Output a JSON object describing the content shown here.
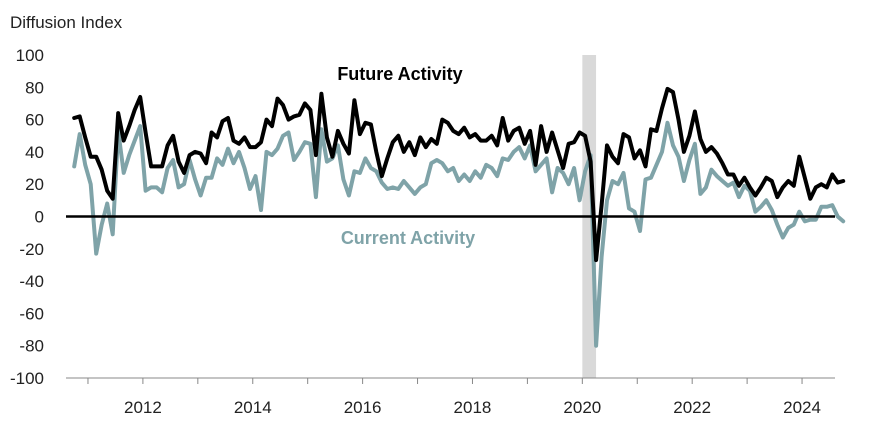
{
  "chart_data": {
    "type": "line",
    "ylabel": "Diffusion Index",
    "ylim": [
      -100,
      100
    ],
    "yticks": [
      "100",
      "80",
      "60",
      "40",
      "20",
      "0",
      "-20",
      "-40",
      "-60",
      "-80",
      "-100"
    ],
    "xlim": [
      2010.6,
      2024.6
    ],
    "xticks": [
      {
        "label": "2012",
        "x": 2012.0
      },
      {
        "label": "2014",
        "x": 2014.0
      },
      {
        "label": "2016",
        "x": 2016.0
      },
      {
        "label": "2018",
        "x": 2018.0
      },
      {
        "label": "2020",
        "x": 2020.0
      },
      {
        "label": "2022",
        "x": 2022.0
      },
      {
        "label": "2024",
        "x": 2024.0
      }
    ],
    "recession": {
      "start": 2020.0,
      "end": 2020.25,
      "color": "#d9d9d9"
    },
    "series": [
      {
        "name": "Future Activity",
        "color": "#000000",
        "points": [
          [
            2010.75,
            61
          ],
          [
            2010.85,
            62
          ],
          [
            2010.95,
            49
          ],
          [
            2011.05,
            37
          ],
          [
            2011.15,
            37
          ],
          [
            2011.25,
            29
          ],
          [
            2011.35,
            16
          ],
          [
            2011.45,
            11
          ],
          [
            2011.55,
            64
          ],
          [
            2011.65,
            47
          ],
          [
            2011.75,
            56
          ],
          [
            2011.85,
            66
          ],
          [
            2011.95,
            74
          ],
          [
            2012.05,
            52
          ],
          [
            2012.15,
            31
          ],
          [
            2012.25,
            31
          ],
          [
            2012.35,
            31
          ],
          [
            2012.45,
            44
          ],
          [
            2012.55,
            50
          ],
          [
            2012.65,
            34
          ],
          [
            2012.75,
            27
          ],
          [
            2012.85,
            38
          ],
          [
            2012.95,
            40
          ],
          [
            2013.05,
            39
          ],
          [
            2013.15,
            33
          ],
          [
            2013.25,
            52
          ],
          [
            2013.35,
            49
          ],
          [
            2013.45,
            59
          ],
          [
            2013.55,
            61
          ],
          [
            2013.65,
            47
          ],
          [
            2013.75,
            45
          ],
          [
            2013.85,
            49
          ],
          [
            2013.95,
            43
          ],
          [
            2014.05,
            43
          ],
          [
            2014.15,
            46
          ],
          [
            2014.25,
            60
          ],
          [
            2014.35,
            56
          ],
          [
            2014.45,
            73
          ],
          [
            2014.55,
            69
          ],
          [
            2014.65,
            60
          ],
          [
            2014.75,
            62
          ],
          [
            2014.85,
            63
          ],
          [
            2014.95,
            70
          ],
          [
            2015.05,
            66
          ],
          [
            2015.15,
            38
          ],
          [
            2015.25,
            76
          ],
          [
            2015.35,
            49
          ],
          [
            2015.45,
            37
          ],
          [
            2015.55,
            53
          ],
          [
            2015.65,
            45
          ],
          [
            2015.75,
            39
          ],
          [
            2015.85,
            72
          ],
          [
            2015.95,
            51
          ],
          [
            2016.05,
            58
          ],
          [
            2016.15,
            57
          ],
          [
            2016.25,
            40
          ],
          [
            2016.35,
            25
          ],
          [
            2016.45,
            36
          ],
          [
            2016.55,
            46
          ],
          [
            2016.65,
            50
          ],
          [
            2016.75,
            40
          ],
          [
            2016.85,
            46
          ],
          [
            2016.95,
            38
          ],
          [
            2017.05,
            49
          ],
          [
            2017.15,
            43
          ],
          [
            2017.25,
            48
          ],
          [
            2017.35,
            45
          ],
          [
            2017.45,
            60
          ],
          [
            2017.55,
            58
          ],
          [
            2017.65,
            53
          ],
          [
            2017.75,
            51
          ],
          [
            2017.85,
            55
          ],
          [
            2017.95,
            49
          ],
          [
            2018.05,
            51
          ],
          [
            2018.15,
            47
          ],
          [
            2018.25,
            47
          ],
          [
            2018.35,
            50
          ],
          [
            2018.45,
            44
          ],
          [
            2018.55,
            61
          ],
          [
            2018.65,
            47
          ],
          [
            2018.75,
            53
          ],
          [
            2018.85,
            55
          ],
          [
            2018.95,
            45
          ],
          [
            2019.05,
            53
          ],
          [
            2019.15,
            32
          ],
          [
            2019.25,
            56
          ],
          [
            2019.35,
            40
          ],
          [
            2019.45,
            52
          ],
          [
            2019.55,
            41
          ],
          [
            2019.65,
            30
          ],
          [
            2019.75,
            45
          ],
          [
            2019.85,
            46
          ],
          [
            2019.95,
            52
          ],
          [
            2020.05,
            50
          ],
          [
            2020.15,
            34
          ],
          [
            2020.25,
            -27
          ],
          [
            2020.35,
            7
          ],
          [
            2020.45,
            44
          ],
          [
            2020.55,
            37
          ],
          [
            2020.65,
            33
          ],
          [
            2020.75,
            51
          ],
          [
            2020.85,
            49
          ],
          [
            2020.95,
            36
          ],
          [
            2021.05,
            41
          ],
          [
            2021.15,
            31
          ],
          [
            2021.25,
            54
          ],
          [
            2021.35,
            53
          ],
          [
            2021.45,
            67
          ],
          [
            2021.55,
            79
          ],
          [
            2021.65,
            77
          ],
          [
            2021.75,
            60
          ],
          [
            2021.85,
            40
          ],
          [
            2021.95,
            50
          ],
          [
            2022.05,
            65
          ],
          [
            2022.15,
            48
          ],
          [
            2022.25,
            40
          ],
          [
            2022.35,
            43
          ],
          [
            2022.45,
            39
          ],
          [
            2022.55,
            33
          ],
          [
            2022.65,
            26
          ],
          [
            2022.75,
            26
          ],
          [
            2022.85,
            19
          ],
          [
            2022.95,
            24
          ],
          [
            2023.05,
            18
          ],
          [
            2023.15,
            13
          ],
          [
            2023.25,
            18
          ],
          [
            2023.35,
            24
          ],
          [
            2023.45,
            22
          ],
          [
            2023.55,
            12
          ],
          [
            2023.65,
            18
          ],
          [
            2023.75,
            22
          ],
          [
            2023.85,
            19
          ],
          [
            2023.95,
            37
          ],
          [
            2024.05,
            24
          ],
          [
            2024.15,
            11
          ],
          [
            2024.25,
            18
          ],
          [
            2024.35,
            20
          ],
          [
            2024.45,
            18
          ],
          [
            2024.55,
            26
          ],
          [
            2024.65,
            21
          ],
          [
            2024.75,
            22
          ]
        ]
      },
      {
        "name": "Current Activity",
        "color": "#7fa3a8",
        "points": [
          [
            2010.75,
            31
          ],
          [
            2010.85,
            51
          ],
          [
            2010.95,
            32
          ],
          [
            2011.05,
            20
          ],
          [
            2011.15,
            -23
          ],
          [
            2011.25,
            -5
          ],
          [
            2011.35,
            8
          ],
          [
            2011.45,
            -11
          ],
          [
            2011.55,
            53
          ],
          [
            2011.65,
            27
          ],
          [
            2011.75,
            38
          ],
          [
            2011.85,
            47
          ],
          [
            2011.95,
            56
          ],
          [
            2012.05,
            16
          ],
          [
            2012.15,
            18
          ],
          [
            2012.25,
            18
          ],
          [
            2012.35,
            15
          ],
          [
            2012.45,
            30
          ],
          [
            2012.55,
            35
          ],
          [
            2012.65,
            18
          ],
          [
            2012.75,
            20
          ],
          [
            2012.85,
            35
          ],
          [
            2012.95,
            23
          ],
          [
            2013.05,
            13
          ],
          [
            2013.15,
            24
          ],
          [
            2013.25,
            24
          ],
          [
            2013.35,
            36
          ],
          [
            2013.45,
            32
          ],
          [
            2013.55,
            42
          ],
          [
            2013.65,
            33
          ],
          [
            2013.75,
            40
          ],
          [
            2013.85,
            30
          ],
          [
            2013.95,
            17
          ],
          [
            2014.05,
            25
          ],
          [
            2014.15,
            4
          ],
          [
            2014.25,
            40
          ],
          [
            2014.35,
            38
          ],
          [
            2014.45,
            42
          ],
          [
            2014.55,
            50
          ],
          [
            2014.65,
            52
          ],
          [
            2014.75,
            35
          ],
          [
            2014.85,
            40
          ],
          [
            2014.95,
            46
          ],
          [
            2015.05,
            45
          ],
          [
            2015.15,
            12
          ],
          [
            2015.25,
            54
          ],
          [
            2015.35,
            34
          ],
          [
            2015.45,
            36
          ],
          [
            2015.55,
            44
          ],
          [
            2015.65,
            23
          ],
          [
            2015.75,
            13
          ],
          [
            2015.85,
            28
          ],
          [
            2015.95,
            27
          ],
          [
            2016.05,
            36
          ],
          [
            2016.15,
            30
          ],
          [
            2016.25,
            28
          ],
          [
            2016.35,
            21
          ],
          [
            2016.45,
            17
          ],
          [
            2016.55,
            18
          ],
          [
            2016.65,
            17
          ],
          [
            2016.75,
            22
          ],
          [
            2016.85,
            18
          ],
          [
            2016.95,
            14
          ],
          [
            2017.05,
            18
          ],
          [
            2017.15,
            20
          ],
          [
            2017.25,
            33
          ],
          [
            2017.35,
            35
          ],
          [
            2017.45,
            33
          ],
          [
            2017.55,
            28
          ],
          [
            2017.65,
            30
          ],
          [
            2017.75,
            22
          ],
          [
            2017.85,
            26
          ],
          [
            2017.95,
            22
          ],
          [
            2018.05,
            28
          ],
          [
            2018.15,
            24
          ],
          [
            2018.25,
            32
          ],
          [
            2018.35,
            30
          ],
          [
            2018.45,
            25
          ],
          [
            2018.55,
            36
          ],
          [
            2018.65,
            35
          ],
          [
            2018.75,
            40
          ],
          [
            2018.85,
            43
          ],
          [
            2018.95,
            36
          ],
          [
            2019.05,
            44
          ],
          [
            2019.15,
            28
          ],
          [
            2019.25,
            32
          ],
          [
            2019.35,
            36
          ],
          [
            2019.45,
            15
          ],
          [
            2019.55,
            30
          ],
          [
            2019.65,
            27
          ],
          [
            2019.75,
            20
          ],
          [
            2019.85,
            30
          ],
          [
            2019.95,
            10
          ],
          [
            2020.05,
            28
          ],
          [
            2020.15,
            38
          ],
          [
            2020.25,
            -80
          ],
          [
            2020.35,
            -25
          ],
          [
            2020.45,
            10
          ],
          [
            2020.55,
            22
          ],
          [
            2020.65,
            20
          ],
          [
            2020.75,
            27
          ],
          [
            2020.85,
            5
          ],
          [
            2020.95,
            3
          ],
          [
            2021.05,
            -9
          ],
          [
            2021.15,
            23
          ],
          [
            2021.25,
            24
          ],
          [
            2021.35,
            32
          ],
          [
            2021.45,
            40
          ],
          [
            2021.55,
            58
          ],
          [
            2021.65,
            44
          ],
          [
            2021.75,
            37
          ],
          [
            2021.85,
            22
          ],
          [
            2021.95,
            35
          ],
          [
            2022.05,
            45
          ],
          [
            2022.15,
            14
          ],
          [
            2022.25,
            18
          ],
          [
            2022.35,
            29
          ],
          [
            2022.45,
            25
          ],
          [
            2022.55,
            22
          ],
          [
            2022.65,
            19
          ],
          [
            2022.75,
            21
          ],
          [
            2022.85,
            12
          ],
          [
            2022.95,
            19
          ],
          [
            2023.05,
            16
          ],
          [
            2023.15,
            3
          ],
          [
            2023.25,
            6
          ],
          [
            2023.35,
            10
          ],
          [
            2023.45,
            4
          ],
          [
            2023.55,
            -5
          ],
          [
            2023.65,
            -13
          ],
          [
            2023.75,
            -7
          ],
          [
            2023.85,
            -5
          ],
          [
            2023.95,
            3
          ],
          [
            2024.05,
            -3
          ],
          [
            2024.15,
            -2
          ],
          [
            2024.25,
            -2
          ],
          [
            2024.35,
            6
          ],
          [
            2024.45,
            6
          ],
          [
            2024.55,
            7
          ],
          [
            2024.65,
            0
          ],
          [
            2024.75,
            -3
          ]
        ]
      }
    ],
    "annotations": [
      {
        "text": "Future Activity",
        "series": 0
      },
      {
        "text": "Current Activity",
        "series": 1
      }
    ]
  }
}
